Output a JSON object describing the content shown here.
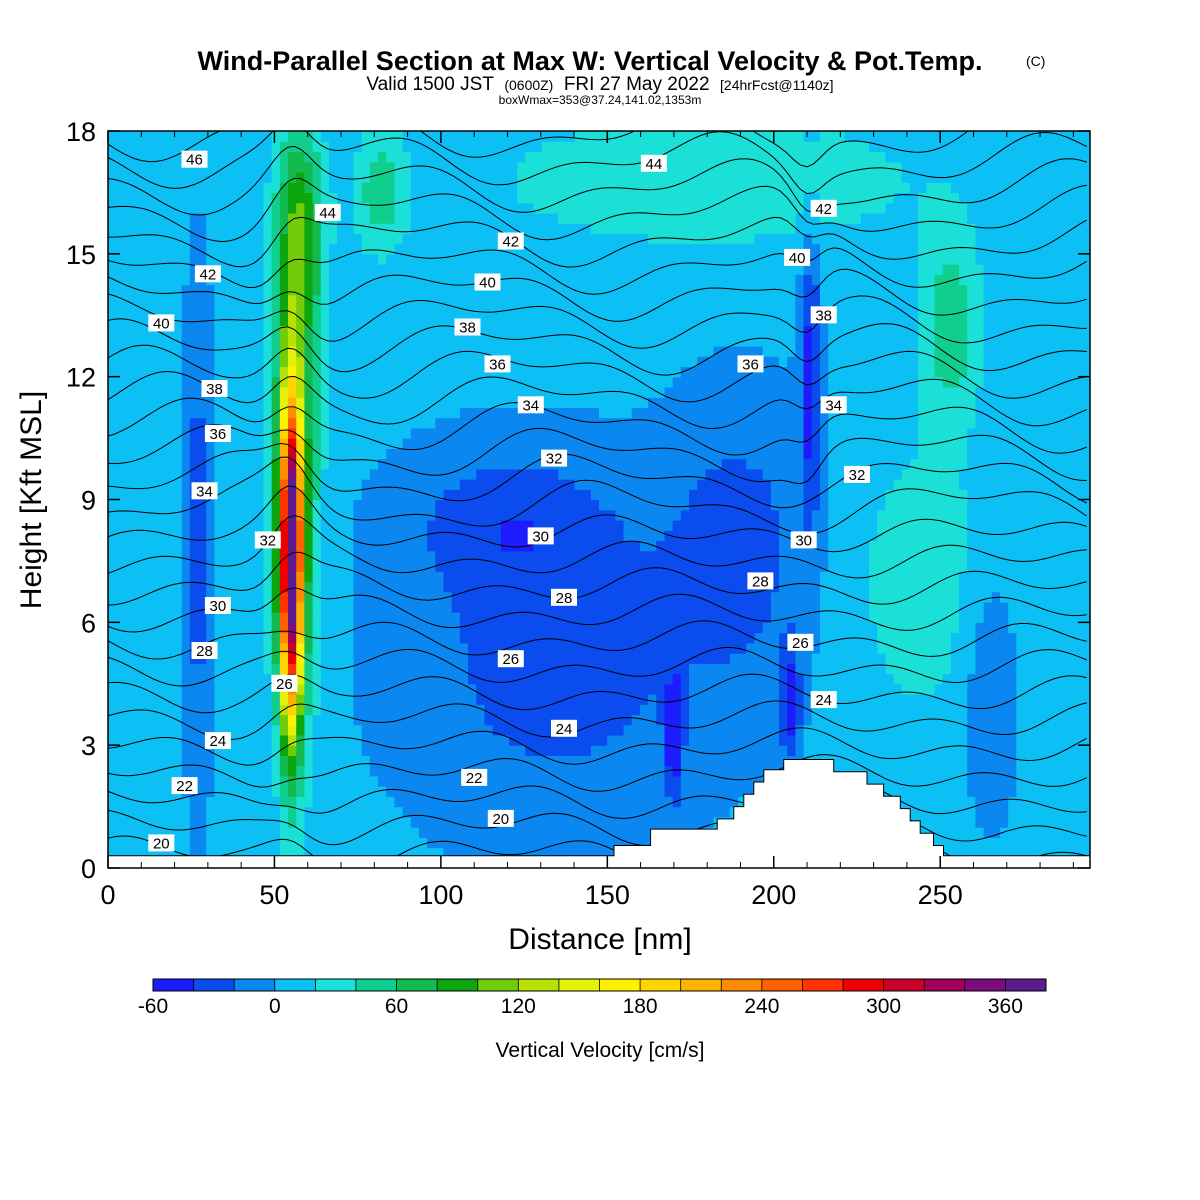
{
  "title": {
    "main": "Wind-Parallel Section at Max W: Vertical Velocity & Pot.Temp.",
    "copyright": "(C)",
    "valid_prefix": "Valid 1500 JST",
    "valid_utc": "(0600Z)",
    "valid_date": "FRI 27 May 2022",
    "forecast": "[24hrFcst@1140z]",
    "box": "boxWmax=353@37.24,141.02,1353m"
  },
  "colors": {
    "contour": "#000000",
    "terrain": "#ffffff",
    "colorbar": [
      "#1c1cff",
      "#0a4cee",
      "#0a87f0",
      "#0cc0f5",
      "#1ae0d8",
      "#10cf8e",
      "#12ba50",
      "#0da60f",
      "#72cc09",
      "#b8e206",
      "#e4f20a",
      "#fff200",
      "#ffd400",
      "#ffb300",
      "#ff8c00",
      "#ff6000",
      "#ff3200",
      "#ef0000",
      "#c8002a",
      "#a0005a",
      "#7c0c7c",
      "#5c1a8c"
    ]
  },
  "chart_data": {
    "type": "heatmap",
    "xlabel": "Distance [nm]",
    "ylabel": "Height [Kft MSL]",
    "xlim": [
      0,
      295
    ],
    "ylim": [
      0,
      18
    ],
    "x_ticks": [
      0,
      50,
      100,
      150,
      200,
      250
    ],
    "y_ticks": [
      0,
      3,
      6,
      9,
      12,
      15,
      18
    ],
    "colorbar": {
      "label": "Vertical Velocity [cm/s]",
      "min": -60,
      "max": 380,
      "step": 20,
      "tick_values": [
        -60,
        0,
        60,
        120,
        180,
        240,
        300,
        360
      ]
    },
    "background_velocity": 5,
    "velocity_features": [
      {
        "name": "updraft-core",
        "cx": 55,
        "cy": 7.5,
        "sx": 3.2,
        "sy": 3.8,
        "value": 345
      },
      {
        "name": "updraft-halo",
        "cx": 56,
        "cy": 9.5,
        "sx": 7,
        "sy": 6.5,
        "value": 90
      },
      {
        "name": "updraft-top",
        "cx": 58,
        "cy": 15.5,
        "sx": 7,
        "sy": 2.5,
        "value": 70
      },
      {
        "name": "plume-upper",
        "cx": 82,
        "cy": 16.5,
        "sx": 8,
        "sy": 1.5,
        "value": 45
      },
      {
        "name": "descent-left-column",
        "cx": 27,
        "cy": 8,
        "sx": 4,
        "sy": 6,
        "value": -35
      },
      {
        "name": "descent-main-lower",
        "cx": 135,
        "cy": 5,
        "sx": 45,
        "sy": 4,
        "value": -35
      },
      {
        "name": "descent-main-mid",
        "cx": 120,
        "cy": 8.5,
        "sx": 30,
        "sy": 1.8,
        "value": -30
      },
      {
        "name": "descent-right",
        "cx": 190,
        "cy": 8,
        "sx": 22,
        "sy": 3.5,
        "value": -32
      },
      {
        "name": "downdraft-170",
        "cx": 170,
        "cy": 3.2,
        "sx": 2.5,
        "sy": 1.5,
        "value": -60
      },
      {
        "name": "downdraft-210",
        "cx": 211,
        "cy": 12,
        "sx": 3,
        "sy": 3.5,
        "value": -55
      },
      {
        "name": "downdraft-205-low",
        "cx": 205,
        "cy": 4,
        "sx": 3,
        "sy": 1.5,
        "value": -50
      },
      {
        "name": "descent-265",
        "cx": 265,
        "cy": 4.5,
        "sx": 8,
        "sy": 3,
        "value": -30
      },
      {
        "name": "upper-band",
        "cx": 180,
        "cy": 16.8,
        "sx": 70,
        "sy": 1.8,
        "value": 30
      },
      {
        "name": "green-patch-right",
        "cx": 253,
        "cy": 13.3,
        "sx": 9,
        "sy": 2.2,
        "value": 50
      },
      {
        "name": "teal-band-right",
        "cx": 245,
        "cy": 7,
        "sx": 25,
        "sy": 4,
        "value": 25
      }
    ],
    "theta_levels": [
      20,
      21,
      22,
      23,
      24,
      25,
      26,
      27,
      28,
      29,
      30,
      31,
      32,
      33,
      34,
      35,
      36,
      37,
      38,
      39,
      40,
      41,
      42,
      43,
      44,
      45,
      46,
      47
    ],
    "theta_labels": [
      {
        "text": "46",
        "x": 26,
        "y": 17.3
      },
      {
        "text": "44",
        "x": 66,
        "y": 16.0
      },
      {
        "text": "44",
        "x": 164,
        "y": 17.2
      },
      {
        "text": "42",
        "x": 30,
        "y": 14.5
      },
      {
        "text": "42",
        "x": 121,
        "y": 15.3
      },
      {
        "text": "42",
        "x": 215,
        "y": 16.1
      },
      {
        "text": "40",
        "x": 16,
        "y": 13.3
      },
      {
        "text": "40",
        "x": 114,
        "y": 14.3
      },
      {
        "text": "40",
        "x": 207,
        "y": 14.9
      },
      {
        "text": "38",
        "x": 32,
        "y": 11.7
      },
      {
        "text": "38",
        "x": 108,
        "y": 13.2
      },
      {
        "text": "38",
        "x": 215,
        "y": 13.5
      },
      {
        "text": "36",
        "x": 33,
        "y": 10.6
      },
      {
        "text": "36",
        "x": 117,
        "y": 12.3
      },
      {
        "text": "36",
        "x": 193,
        "y": 12.3
      },
      {
        "text": "34",
        "x": 29,
        "y": 9.2
      },
      {
        "text": "34",
        "x": 127,
        "y": 11.3
      },
      {
        "text": "34",
        "x": 218,
        "y": 11.3
      },
      {
        "text": "32",
        "x": 48,
        "y": 8.0
      },
      {
        "text": "32",
        "x": 134,
        "y": 10.0
      },
      {
        "text": "32",
        "x": 225,
        "y": 9.6
      },
      {
        "text": "30",
        "x": 33,
        "y": 6.4
      },
      {
        "text": "30",
        "x": 130,
        "y": 8.1
      },
      {
        "text": "30",
        "x": 209,
        "y": 8.0
      },
      {
        "text": "28",
        "x": 29,
        "y": 5.3
      },
      {
        "text": "28",
        "x": 137,
        "y": 6.6
      },
      {
        "text": "28",
        "x": 196,
        "y": 7.0
      },
      {
        "text": "26",
        "x": 53,
        "y": 4.5
      },
      {
        "text": "26",
        "x": 121,
        "y": 5.1
      },
      {
        "text": "26",
        "x": 208,
        "y": 5.5
      },
      {
        "text": "24",
        "x": 33,
        "y": 3.1
      },
      {
        "text": "24",
        "x": 137,
        "y": 3.4
      },
      {
        "text": "24",
        "x": 215,
        "y": 4.1
      },
      {
        "text": "22",
        "x": 23,
        "y": 2.0
      },
      {
        "text": "22",
        "x": 110,
        "y": 2.2
      },
      {
        "text": "20",
        "x": 16,
        "y": 0.6
      },
      {
        "text": "20",
        "x": 118,
        "y": 1.2
      }
    ],
    "terrain": [
      [
        0,
        0.3
      ],
      [
        152,
        0.3
      ],
      [
        152,
        0.55
      ],
      [
        163,
        0.55
      ],
      [
        163,
        0.95
      ],
      [
        183,
        0.95
      ],
      [
        183,
        1.2
      ],
      [
        188,
        1.2
      ],
      [
        188,
        1.5
      ],
      [
        191,
        1.5
      ],
      [
        191,
        1.8
      ],
      [
        194,
        1.8
      ],
      [
        194,
        2.1
      ],
      [
        197,
        2.1
      ],
      [
        197,
        2.4
      ],
      [
        203,
        2.4
      ],
      [
        203,
        2.65
      ],
      [
        218,
        2.65
      ],
      [
        218,
        2.35
      ],
      [
        228,
        2.35
      ],
      [
        228,
        2.05
      ],
      [
        233,
        2.05
      ],
      [
        233,
        1.75
      ],
      [
        238,
        1.75
      ],
      [
        238,
        1.45
      ],
      [
        241,
        1.45
      ],
      [
        241,
        1.15
      ],
      [
        244,
        1.15
      ],
      [
        244,
        0.85
      ],
      [
        248,
        0.85
      ],
      [
        248,
        0.55
      ],
      [
        251,
        0.55
      ],
      [
        251,
        0.3
      ],
      [
        295,
        0.3
      ]
    ]
  }
}
